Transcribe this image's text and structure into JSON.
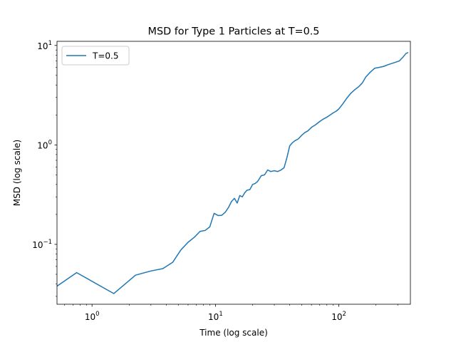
{
  "chart_data": {
    "type": "line",
    "title": "MSD for Type 1 Particles at T=0.5",
    "xlabel": "Time (log scale)",
    "ylabel": "MSD (log scale)",
    "xscale": "log",
    "yscale": "log",
    "xlim": [
      0.52,
      380
    ],
    "ylim": [
      0.025,
      11
    ],
    "grid": false,
    "legend_position": "top-left",
    "x_ticks": [
      {
        "value": 1,
        "base": "10",
        "exp": "0"
      },
      {
        "value": 10,
        "base": "10",
        "exp": "1"
      },
      {
        "value": 100,
        "base": "10",
        "exp": "2"
      }
    ],
    "y_ticks": [
      {
        "value": 0.1,
        "base": "10",
        "exp": "−1"
      },
      {
        "value": 1,
        "base": "10",
        "exp": "0"
      },
      {
        "value": 10,
        "base": "10",
        "exp": "1"
      }
    ],
    "series": [
      {
        "name": "T=0.5",
        "color": "#1f77b4",
        "x": [
          0.52,
          0.75,
          1.5,
          2.25,
          3.0,
          3.75,
          4.5,
          5.25,
          6.0,
          6.75,
          7.5,
          8.25,
          9.0,
          9.75,
          10.5,
          11.25,
          12.0,
          12.75,
          13.5,
          14.25,
          15.0,
          15.75,
          16.5,
          17.25,
          18.0,
          19.0,
          20.0,
          21.0,
          22.0,
          23.5,
          25.0,
          26.5,
          28.0,
          30.0,
          32.0,
          34.0,
          36.0,
          38.0,
          40.0,
          42.0,
          44.0,
          47.0,
          50.0,
          53.0,
          56.0,
          60.0,
          65.0,
          70.0,
          75.0,
          80.0,
          85.0,
          90.0,
          95.0,
          100.0,
          108.0,
          116.0,
          125.0,
          135.0,
          145.0,
          155.0,
          165.0,
          180.0,
          195.0,
          210.0,
          230.0,
          250.0,
          270.0,
          290.0,
          310.0,
          330.0,
          350.0,
          365.0
        ],
        "values": [
          0.038,
          0.052,
          0.032,
          0.049,
          0.054,
          0.057,
          0.066,
          0.088,
          0.105,
          0.118,
          0.135,
          0.138,
          0.15,
          0.205,
          0.195,
          0.196,
          0.21,
          0.235,
          0.27,
          0.29,
          0.26,
          0.31,
          0.3,
          0.33,
          0.35,
          0.355,
          0.4,
          0.41,
          0.43,
          0.49,
          0.5,
          0.56,
          0.54,
          0.55,
          0.54,
          0.56,
          0.59,
          0.75,
          0.98,
          1.05,
          1.1,
          1.15,
          1.25,
          1.33,
          1.38,
          1.5,
          1.6,
          1.72,
          1.82,
          1.9,
          2.0,
          2.1,
          2.18,
          2.3,
          2.6,
          2.95,
          3.3,
          3.6,
          3.85,
          4.2,
          4.8,
          5.4,
          5.9,
          6.0,
          6.15,
          6.4,
          6.6,
          6.8,
          7.0,
          7.6,
          8.3,
          8.5
        ]
      }
    ]
  }
}
